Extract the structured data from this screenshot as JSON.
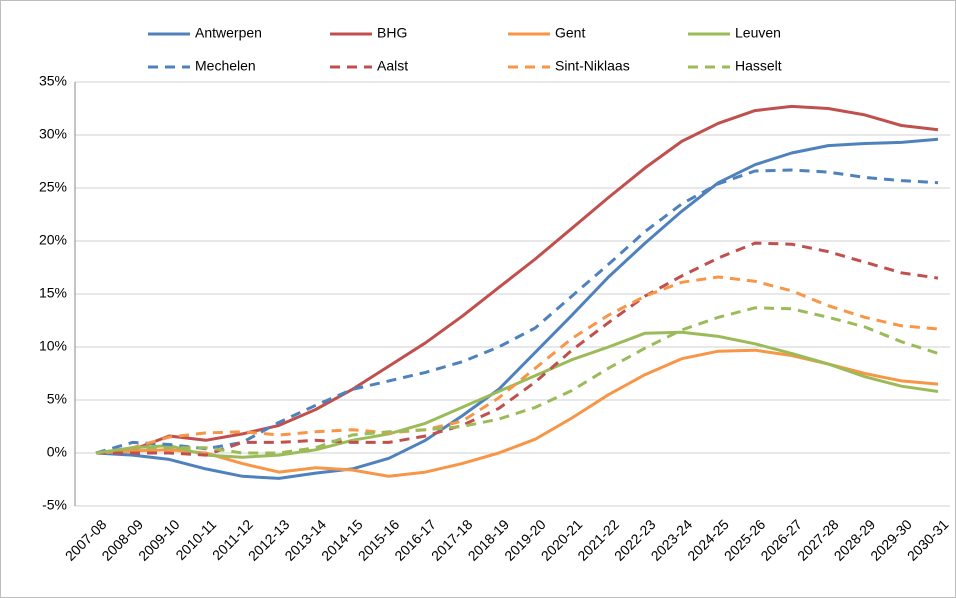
{
  "chart_data": {
    "type": "line",
    "categories": [
      "2007-08",
      "2008-09",
      "2009-10",
      "2010-11",
      "2011-12",
      "2012-13",
      "2013-14",
      "2014-15",
      "2015-16",
      "2016-17",
      "2017-18",
      "2018-19",
      "2019-20",
      "2020-21",
      "2021-22",
      "2022-23",
      "2023-24",
      "2024-25",
      "2025-26",
      "2026-27",
      "2027-28",
      "2028-29",
      "2029-30",
      "2030-31"
    ],
    "series": [
      {
        "name": "Antwerpen",
        "color": "#4f81bd",
        "dashed": false,
        "values": [
          0,
          -0.2,
          -0.6,
          -1.5,
          -2.2,
          -2.4,
          -1.9,
          -1.5,
          -0.5,
          1.2,
          3.5,
          6.0,
          9.5,
          13.0,
          16.6,
          19.8,
          22.8,
          25.5,
          27.2,
          28.3,
          29.0,
          29.2,
          29.3,
          29.6
        ]
      },
      {
        "name": "BHG",
        "color": "#c0504d",
        "dashed": false,
        "values": [
          0,
          0.3,
          1.6,
          1.2,
          1.8,
          2.6,
          4.1,
          6.0,
          8.2,
          10.4,
          12.9,
          15.6,
          18.3,
          21.2,
          24.1,
          26.9,
          29.4,
          31.1,
          32.3,
          32.7,
          32.5,
          31.9,
          30.9,
          30.5
        ]
      },
      {
        "name": "Gent",
        "color": "#f79646",
        "dashed": false,
        "values": [
          0,
          0.2,
          0.3,
          0,
          -1.0,
          -1.8,
          -1.4,
          -1.6,
          -2.2,
          -1.8,
          -1.0,
          0,
          1.3,
          3.3,
          5.5,
          7.4,
          8.9,
          9.6,
          9.7,
          9.2,
          8.4,
          7.5,
          6.8,
          6.5
        ]
      },
      {
        "name": "Leuven",
        "color": "#9bbb59",
        "dashed": false,
        "values": [
          0,
          0.5,
          0.7,
          -0.2,
          -0.4,
          -0.2,
          0.3,
          1.2,
          1.8,
          2.8,
          4.3,
          5.8,
          7.3,
          8.8,
          10.0,
          11.3,
          11.4,
          11.0,
          10.3,
          9.4,
          8.4,
          7.2,
          6.3,
          5.8
        ]
      },
      {
        "name": "Mechelen",
        "color": "#4f81bd",
        "dashed": true,
        "values": [
          0,
          1.0,
          0.8,
          0.4,
          1.0,
          2.9,
          4.5,
          6.0,
          6.8,
          7.6,
          8.6,
          10.0,
          11.8,
          14.8,
          17.8,
          20.9,
          23.5,
          25.4,
          26.6,
          26.7,
          26.5,
          26.0,
          25.7,
          25.5
        ]
      },
      {
        "name": "Aalst",
        "color": "#c0504d",
        "dashed": true,
        "values": [
          0,
          0,
          0,
          -0.2,
          1.0,
          1.0,
          1.2,
          1.0,
          1.0,
          1.6,
          2.6,
          4.2,
          6.7,
          9.7,
          12.3,
          14.8,
          16.7,
          18.4,
          19.8,
          19.7,
          19.0,
          18.0,
          17.0,
          16.5
        ]
      },
      {
        "name": "Sint-Niklaas",
        "color": "#f79646",
        "dashed": true,
        "values": [
          0,
          0.5,
          1.5,
          1.9,
          2.0,
          1.7,
          2.0,
          2.2,
          1.9,
          2.2,
          3.0,
          5.2,
          8.0,
          10.8,
          13.0,
          14.8,
          16.1,
          16.6,
          16.2,
          15.3,
          13.9,
          12.8,
          12.0,
          11.7
        ]
      },
      {
        "name": "Hasselt",
        "color": "#9bbb59",
        "dashed": true,
        "values": [
          0,
          0.5,
          0.5,
          0.5,
          0,
          0,
          0.5,
          1.7,
          2.0,
          2.2,
          2.5,
          3.2,
          4.3,
          5.9,
          8.0,
          9.9,
          11.6,
          12.8,
          13.7,
          13.6,
          12.8,
          11.9,
          10.5,
          9.4
        ]
      }
    ],
    "ylim": [
      -5,
      35
    ],
    "yticks": [
      {
        "value": -5,
        "label": "-5%"
      },
      {
        "value": 0,
        "label": "0%"
      },
      {
        "value": 5,
        "label": "5%"
      },
      {
        "value": 10,
        "label": "10%"
      },
      {
        "value": 15,
        "label": "15%"
      },
      {
        "value": 20,
        "label": "20%"
      },
      {
        "value": 25,
        "label": "25%"
      },
      {
        "value": 30,
        "label": "30%"
      },
      {
        "value": 35,
        "label": "35%"
      }
    ],
    "grid": true,
    "legend": "top"
  }
}
